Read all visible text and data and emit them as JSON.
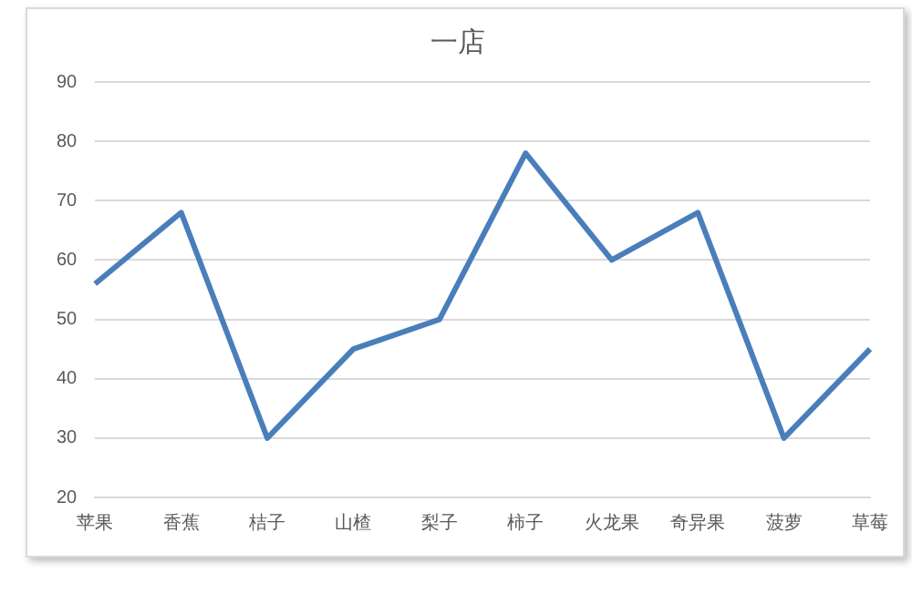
{
  "chart_data": {
    "type": "line",
    "title": "一店",
    "categories": [
      "苹果",
      "香蕉",
      "桔子",
      "山楂",
      "梨子",
      "柿子",
      "火龙果",
      "奇异果",
      "菠萝",
      "草莓"
    ],
    "series": [
      {
        "color": "#4a7ebb",
        "values": [
          56,
          68,
          30,
          45,
          50,
          78,
          60,
          68,
          30,
          45
        ]
      }
    ],
    "ylim": [
      20,
      90
    ],
    "yticks": [
      20,
      30,
      40,
      50,
      60,
      70,
      80,
      90
    ],
    "grid": "y",
    "legend": false,
    "marker": "none",
    "line_style": "solid"
  }
}
